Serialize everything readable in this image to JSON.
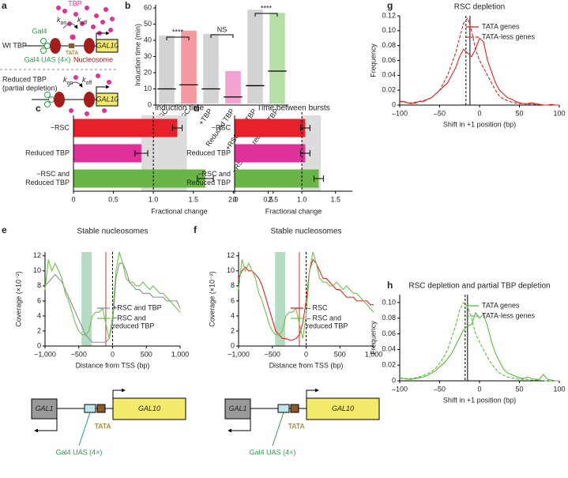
{
  "panel_labels": [
    "a",
    "b",
    "c",
    "d",
    "e",
    "f",
    "g",
    "h"
  ],
  "diagram_a": {
    "wt_label": "Wt TBP",
    "tbp": "TBP",
    "gal4": "Gal4",
    "tata": "TATA",
    "gene": "GAL10",
    "uas": "Gal4 UAS (4×)",
    "nucleosome": "Nucleosome",
    "reduced_label": [
      "Reduced TBP",
      "(partial depletion)"
    ],
    "rates": [
      {
        "k": "k",
        "sub": "on"
      },
      {
        "k": "k",
        "sub": "off"
      },
      {
        "k": "k",
        "sub": "on"
      },
      {
        "k": "k",
        "sub": "off"
      }
    ],
    "gene_reduced": "GAL10"
  },
  "chart_data": [
    {
      "type": "strip",
      "ylabel": "Induction time (min)",
      "categories": [
        "+RSC",
        "−RSC",
        "+TBP",
        "Reduced TBP",
        "+RSC and TBP",
        "−RSC and reduced TBP"
      ],
      "colors": [
        "#9e9e9e",
        "#e8202a",
        "#9e9e9e",
        "#e0309a",
        "#9e9e9e",
        "#5cb83a"
      ],
      "values": [
        10,
        12.5,
        10,
        5,
        12,
        21
      ],
      "min": [
        1,
        1,
        1,
        1,
        1,
        1
      ],
      "max": [
        43,
        46,
        44,
        21,
        59,
        57
      ],
      "ylim": [
        0,
        62
      ],
      "yticks": [
        0,
        10,
        20,
        30,
        40,
        50,
        60
      ],
      "annotations": [
        "****",
        "NS",
        "****"
      ]
    },
    {
      "type": "hbar",
      "title": "Induction time",
      "xlabel": "Fractional change",
      "categories": [
        "−RSC",
        "Reduced TBP",
        [
          "−RSC and",
          "Reduced TBP"
        ]
      ],
      "colors": [
        "#e8202a",
        "#e0309a",
        "#6ab547"
      ],
      "values": [
        1.3,
        0.85,
        1.65
      ],
      "errors": [
        0.06,
        0.08,
        0.1
      ],
      "xlim": [
        0,
        2.65
      ],
      "xticks": [
        0,
        0.5,
        {
          "value": 1,
          "label": "1.0"
        },
        1.5,
        {
          "value": 2,
          "label": "2.0"
        },
        2.5
      ],
      "reference_line": 1,
      "reference_band": [
        0.85,
        1.42
      ]
    },
    {
      "type": "hbar",
      "title": "Time between bursts",
      "xlabel": "Fractional change",
      "categories": [
        "−RSC",
        "Reduced TBP",
        [
          "−RSC and",
          "Reduced TBP"
        ]
      ],
      "colors": [
        "#e8202a",
        "#e0309a",
        "#6ab547"
      ],
      "values": [
        1.05,
        1.05,
        1.25
      ],
      "errors": [
        0.07,
        0.07,
        0.07
      ],
      "xlim": [
        0,
        1.75
      ],
      "xticks": [
        0,
        0.5,
        {
          "value": 1,
          "label": "1.0"
        },
        1.5
      ],
      "reference_line": 1,
      "reference_band": [
        1.0,
        1.28
      ]
    },
    {
      "type": "line",
      "title": "Stable nucleosomes",
      "xlabel": "Distance from TSS (bp)",
      "ylabel": "Coverage (×10⁻²)",
      "legend": "lower right",
      "x": [
        -1000,
        -950,
        -900,
        -850,
        -800,
        -750,
        -700,
        -650,
        -600,
        -550,
        -500,
        -450,
        -400,
        -350,
        -300,
        -250,
        -200,
        -150,
        -100,
        -50,
        0,
        50,
        100,
        150,
        200,
        250,
        300,
        350,
        400,
        450,
        500,
        550,
        600,
        650,
        700,
        750,
        800,
        850,
        900,
        950,
        1000
      ],
      "series": [
        {
          "name": "+RSC and TBP",
          "color": "#8c8c8c",
          "values": [
            8,
            8.5,
            9,
            9.5,
            9,
            8.5,
            7.5,
            6.5,
            5.5,
            4.5,
            3.5,
            2.5,
            1.5,
            1,
            0.5,
            0.5,
            0.5,
            0.5,
            0.5,
            1,
            3,
            9,
            11,
            11,
            10,
            8.5,
            8,
            7.5,
            7.5,
            7,
            7,
            7,
            6.5,
            6.5,
            6.5,
            6.5,
            6,
            6,
            6,
            6,
            5
          ]
        },
        {
          "name": [
            "−RSC and",
            "reduced TBP"
          ],
          "color": "#6cc24a",
          "values": [
            7.5,
            11.5,
            10,
            11,
            10,
            9,
            7,
            6,
            4.5,
            3,
            2,
            1.5,
            1.5,
            2,
            4,
            4.5,
            4.5,
            5,
            3,
            1,
            4,
            10,
            12.5,
            11,
            9,
            8.5,
            8.5,
            8,
            8,
            8.5,
            8,
            7.5,
            8,
            7.5,
            7,
            7,
            6.5,
            6,
            5.5,
            5,
            4.5
          ]
        }
      ],
      "xlim": [
        -1000,
        1000
      ],
      "xticks": [
        {
          "value": -1000,
          "label": "−1,000"
        },
        {
          "value": -500,
          "label": "−500"
        },
        0,
        500,
        {
          "value": 1000,
          "label": "1,000"
        }
      ],
      "ylim": [
        0,
        12.5
      ],
      "yticks": [
        0,
        2,
        4,
        6,
        8,
        10,
        12
      ],
      "shaded_band": [
        -460,
        -310
      ],
      "band_color": "#b5dcc3",
      "vlines": [
        {
          "value": -100,
          "color": "#c0392b",
          "dash": false
        },
        {
          "value": 0,
          "color": "#000000",
          "dash": true
        }
      ]
    },
    {
      "type": "line",
      "title": "Stable nucleosomes",
      "xlabel": "Distance from TSS (bp)",
      "ylabel": "Coverage (×10⁻²)",
      "legend": "lower right",
      "x": [
        -1000,
        -950,
        -900,
        -850,
        -800,
        -750,
        -700,
        -650,
        -600,
        -550,
        -500,
        -450,
        -400,
        -350,
        -300,
        -250,
        -200,
        -150,
        -100,
        -50,
        0,
        50,
        100,
        150,
        200,
        250,
        300,
        350,
        400,
        450,
        500,
        550,
        600,
        650,
        700,
        750,
        800,
        850,
        900,
        950,
        1000
      ],
      "series": [
        {
          "name": "– RSC",
          "color": "#e02020",
          "values": [
            9,
            10,
            10.5,
            10,
            10,
            9.5,
            9,
            8,
            6.5,
            5,
            3.5,
            2,
            1.5,
            1,
            1,
            0.8,
            0.8,
            1,
            1.5,
            3,
            6,
            10,
            11.5,
            11,
            10,
            9,
            9,
            8.5,
            8,
            7.5,
            7.5,
            7,
            6.5,
            6.5,
            6.5,
            6,
            6,
            6,
            6,
            5.5,
            5.5
          ]
        },
        {
          "name": [
            "– RSC and",
            "reduced TBP"
          ],
          "color": "#6cc24a",
          "values": [
            7.5,
            11.5,
            10,
            11,
            10,
            9,
            7,
            6,
            4.5,
            3,
            2,
            1.5,
            1.5,
            2,
            4,
            4.5,
            4.5,
            5,
            3,
            1,
            4,
            10,
            12.5,
            11,
            9,
            8.5,
            8.5,
            8,
            8,
            8.5,
            8,
            7.5,
            8,
            7.5,
            7,
            7,
            6.5,
            6,
            5.5,
            5,
            4.5
          ]
        }
      ],
      "xlim": [
        -1000,
        1000
      ],
      "xticks": [
        {
          "value": -1000,
          "label": "−1,000"
        },
        {
          "value": -500,
          "label": "−500"
        },
        0,
        500,
        {
          "value": 1000,
          "label": "1,000"
        }
      ],
      "ylim": [
        0,
        12.5
      ],
      "yticks": [
        0,
        2,
        4,
        6,
        8,
        10,
        12
      ],
      "shaded_band": [
        -460,
        -310
      ],
      "band_color": "#b5dcc3",
      "vlines": [
        {
          "value": -100,
          "color": "#c0392b",
          "dash": false
        },
        {
          "value": 0,
          "color": "#000000",
          "dash": true
        }
      ]
    },
    {
      "type": "line",
      "title": "RSC depletion",
      "xlabel": "Shift in +1 position (bp)",
      "ylabel": "Frequency",
      "legend": "upper right",
      "x": [
        -100,
        -95,
        -90,
        -85,
        -80,
        -75,
        -70,
        -65,
        -60,
        -55,
        -50,
        -45,
        -40,
        -35,
        -30,
        -25,
        -20,
        -15,
        -10,
        -5,
        0,
        5,
        10,
        15,
        20,
        25,
        30,
        35,
        40,
        45,
        50,
        55,
        60,
        65,
        70,
        75,
        80,
        85,
        90,
        95,
        100
      ],
      "series": [
        {
          "name": "TATA genes",
          "color": "#e02020",
          "dash": false,
          "values": [
            0.005,
            0.005,
            0.003,
            0.002,
            0.003,
            0.005,
            0.005,
            0.008,
            0.01,
            0.015,
            0.02,
            0.025,
            0.03,
            0.04,
            0.05,
            0.065,
            0.075,
            0.07,
            0.065,
            0.075,
            0.09,
            0.085,
            0.06,
            0.045,
            0.03,
            0.02,
            0.015,
            0.01,
            0.008,
            0.005,
            0.003,
            0.002,
            0.002,
            0.003,
            0.002,
            0.001,
            0,
            0,
            0.001,
            0,
            0
          ]
        },
        {
          "name": "TATA-less genes",
          "color": "#e02020",
          "dash": true,
          "values": [
            0.005,
            0.004,
            0.003,
            0.003,
            0.004,
            0.005,
            0.006,
            0.008,
            0.01,
            0.015,
            0.02,
            0.03,
            0.04,
            0.055,
            0.07,
            0.09,
            0.11,
            0.117,
            0.1,
            0.075,
            0.06,
            0.05,
            0.04,
            0.03,
            0.02,
            0.012,
            0.008,
            0.006,
            0.004,
            0.003,
            0.002,
            0.002,
            0.001,
            0.002,
            0.001,
            0.001,
            0,
            0,
            0,
            0,
            0
          ]
        }
      ],
      "xlim": [
        -100,
        100
      ],
      "xticks": [
        {
          "value": -100,
          "label": "–100"
        },
        {
          "value": -50,
          "label": "–50"
        },
        0,
        50,
        100
      ],
      "ylim": [
        0,
        0.12
      ],
      "yticks": [
        0,
        0.02,
        0.04,
        0.06,
        0.08,
        {
          "value": 0.1,
          "label": "0.10"
        },
        0.12
      ],
      "vlines": [
        {
          "value": -17,
          "color": "#000000",
          "dash": true
        },
        {
          "value": -12,
          "color": "#000000",
          "dash": false
        }
      ]
    },
    {
      "type": "line",
      "title": "RSC depletion and partial TBP depletion",
      "xlabel": "Shift in +1 position (bp)",
      "ylabel": "Frequency",
      "legend": "upper right",
      "x": [
        -100,
        -95,
        -90,
        -85,
        -80,
        -75,
        -70,
        -65,
        -60,
        -55,
        -50,
        -45,
        -40,
        -35,
        -30,
        -25,
        -20,
        -15,
        -10,
        -5,
        0,
        5,
        10,
        15,
        20,
        25,
        30,
        35,
        40,
        45,
        50,
        55,
        60,
        65,
        70,
        75,
        80,
        85,
        90,
        95,
        100
      ],
      "series": [
        {
          "name": "TATA genes",
          "color": "#5cb83a",
          "dash": false,
          "values": [
            0.003,
            0.003,
            0.002,
            0.002,
            0.003,
            0.004,
            0.005,
            0.007,
            0.01,
            0.013,
            0.018,
            0.022,
            0.028,
            0.035,
            0.045,
            0.055,
            0.065,
            0.07,
            0.072,
            0.087,
            0.08,
            0.085,
            0.07,
            0.05,
            0.035,
            0.025,
            0.015,
            0.01,
            0.008,
            0.006,
            0.004,
            0.003,
            0.005,
            0.003,
            0.002,
            0.002,
            0.008,
            0.002,
            0.001,
            0,
            0
          ]
        },
        {
          "name": "TATA-less genes",
          "color": "#5cb83a",
          "dash": true,
          "values": [
            0.004,
            0.003,
            0.003,
            0.003,
            0.004,
            0.005,
            0.007,
            0.009,
            0.012,
            0.016,
            0.022,
            0.03,
            0.04,
            0.055,
            0.07,
            0.09,
            0.1,
            0.095,
            0.08,
            0.06,
            0.05,
            0.04,
            0.03,
            0.022,
            0.015,
            0.01,
            0.007,
            0.005,
            0.004,
            0.003,
            0.002,
            0.002,
            0.002,
            0.001,
            0.001,
            0.001,
            0,
            0,
            0,
            0,
            0
          ]
        }
      ],
      "xlim": [
        -100,
        100
      ],
      "xticks": [
        {
          "value": -100,
          "label": "–100"
        },
        {
          "value": -50,
          "label": "–50"
        },
        0,
        50,
        100
      ],
      "ylim": [
        0,
        0.11
      ],
      "yticks": [
        0,
        0.02,
        0.04,
        0.06,
        0.08,
        {
          "value": 0.1,
          "label": "0.10"
        }
      ],
      "vlines": [
        {
          "value": -18,
          "color": "#000000",
          "dash": true
        },
        {
          "value": -15,
          "color": "#000000",
          "dash": false
        }
      ]
    }
  ],
  "gene_diagrams": [
    {
      "gene1": "GAL1",
      "tata": "TATA",
      "gene2": "GAL10",
      "uas": "Gal4 UAS (4×)"
    },
    {
      "gene1": "GAL1",
      "tata": "TATA",
      "gene2": "GAL10",
      "uas": "Gal4 UAS (4×)"
    }
  ]
}
